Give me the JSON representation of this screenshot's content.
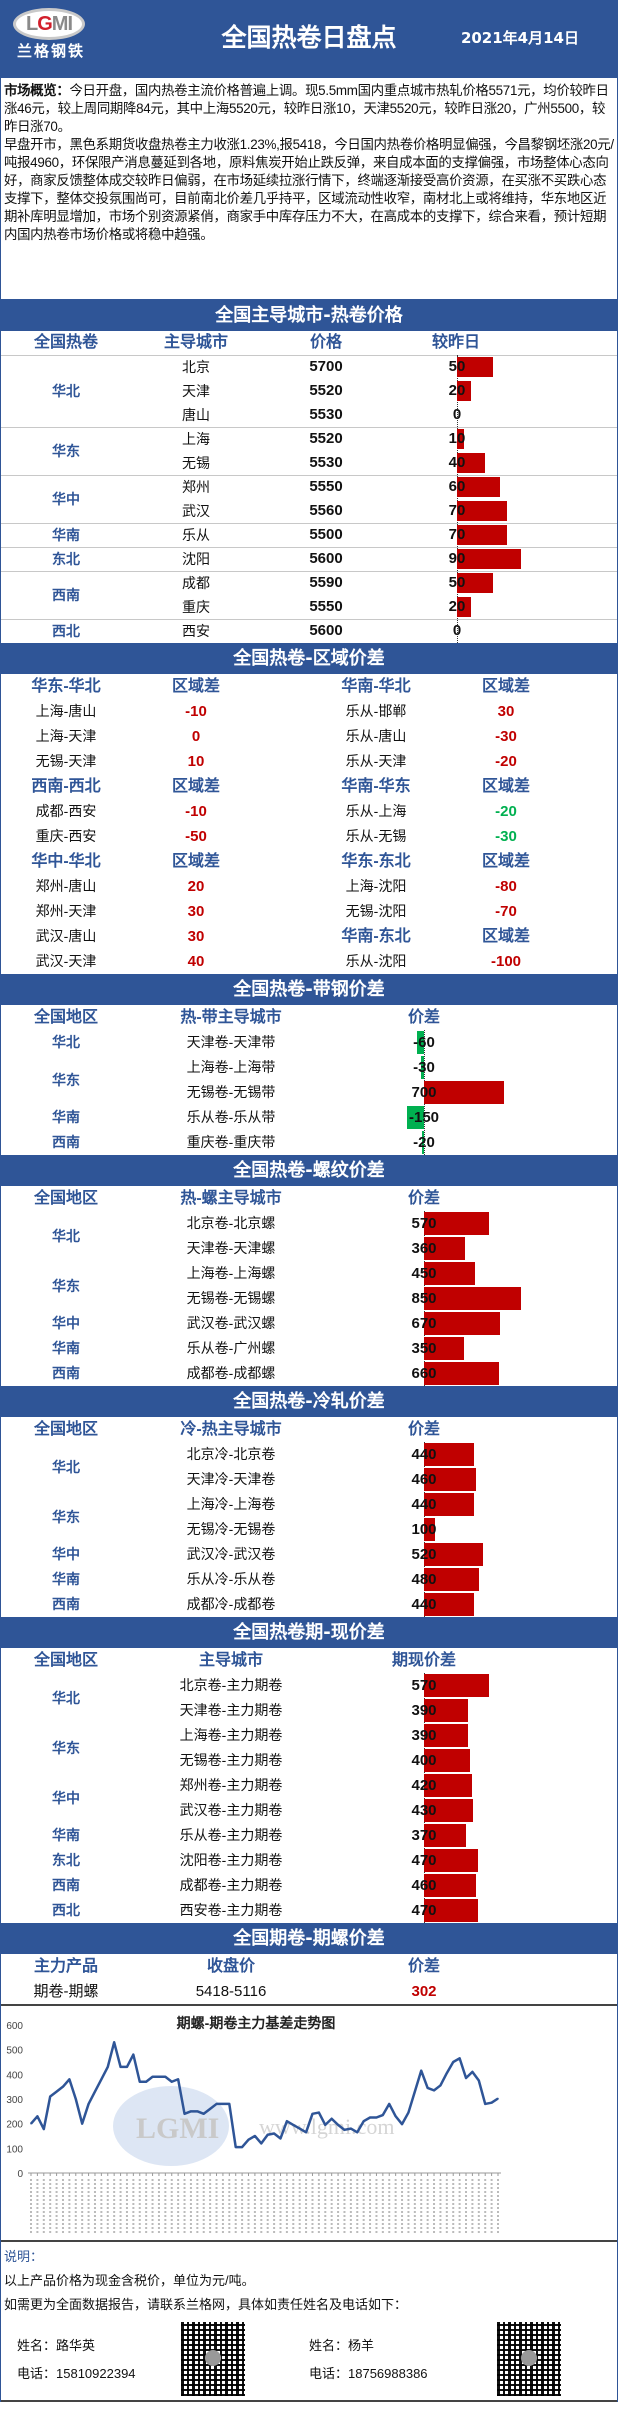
{
  "header": {
    "logo_text": "LGMI",
    "logo_cn": "兰格钢铁",
    "title": "全国热卷日盘点",
    "date": "2021年4月14日"
  },
  "overview": {
    "label": "市场概览：",
    "p1": "今日开盘，国内热卷主流价格普遍上调。现5.5mm国内重点城市热轧价格5571元，均价较昨日涨46元，较上周同期降84元，其中上海5520元，较昨日涨10，天津5520元，较昨日涨20，广州5500，较昨日涨70。",
    "p2": "早盘开市，黑色系期货收盘热卷主力收涨1.23%,报5418，今日国内热卷价格明显偏强，今昌黎钢坯涨20元/吨报4960，环保限产消息蔓延到各地，原料焦炭开始止跌反弹，来自成本面的支撑偏强，市场整体心态向好，商家反馈整体成交较昨日偏弱，在市场延续拉涨行情下，终端逐渐接受高价资源，在买涨不买跌心态支撑下，整体交投氛围尚可，目前南北价差几乎持平，区域流动性收窄，南材北上或将维持，华东地区近期补库明显增加，市场个别资源紧俏，商家手中库存压力不大，在高成本的支撑下，综合来看，预计短期内国内热卷市场价格或将稳中趋强。"
  },
  "colors": {
    "brand": "#2f5597",
    "up": "#c00000",
    "down": "#00b050"
  },
  "hot_price": {
    "title": "全国主导城市-热卷价格",
    "headers": [
      "全国热卷",
      "主导城市",
      "价格",
      "较昨日"
    ],
    "groups": [
      {
        "region": "华北",
        "rows": [
          {
            "city": "北京",
            "price": "5700",
            "change": 50
          },
          {
            "city": "天津",
            "price": "5520",
            "change": 20
          },
          {
            "city": "唐山",
            "price": "5530",
            "change": 0
          }
        ]
      },
      {
        "region": "华东",
        "rows": [
          {
            "city": "上海",
            "price": "5520",
            "change": 10
          },
          {
            "city": "无锡",
            "price": "5530",
            "change": 40
          }
        ]
      },
      {
        "region": "华中",
        "rows": [
          {
            "city": "郑州",
            "price": "5550",
            "change": 60
          },
          {
            "city": "武汉",
            "price": "5560",
            "change": 70
          }
        ]
      },
      {
        "region": "华南",
        "rows": [
          {
            "city": "乐从",
            "price": "5500",
            "change": 70
          }
        ]
      },
      {
        "region": "东北",
        "rows": [
          {
            "city": "沈阳",
            "price": "5600",
            "change": 90
          }
        ]
      },
      {
        "region": "西南",
        "rows": [
          {
            "city": "成都",
            "price": "5590",
            "change": 50
          },
          {
            "city": "重庆",
            "price": "5550",
            "change": 20
          }
        ]
      },
      {
        "region": "西北",
        "rows": [
          {
            "city": "西安",
            "price": "5600",
            "change": 0
          }
        ]
      }
    ]
  },
  "region_spread": {
    "title": "全国热卷-区域价差",
    "col_label": "区域差",
    "left": [
      {
        "name": "华东-华北",
        "color": "#c00000",
        "rows": [
          {
            "pair": "上海-唐山",
            "value": "-10"
          },
          {
            "pair": "上海-天津",
            "value": "0"
          },
          {
            "pair": "无锡-天津",
            "value": "10"
          }
        ]
      },
      {
        "name": "西南-西北",
        "color": "#c00000",
        "rows": [
          {
            "pair": "成都-西安",
            "value": "-10"
          },
          {
            "pair": "重庆-西安",
            "value": "-50"
          }
        ]
      },
      {
        "name": "华中-华北",
        "color": "#c00000",
        "rows": [
          {
            "pair": "郑州-唐山",
            "value": "20"
          },
          {
            "pair": "郑州-天津",
            "value": "30"
          },
          {
            "pair": "武汉-唐山",
            "value": "30"
          },
          {
            "pair": "武汉-天津",
            "value": "40"
          }
        ]
      }
    ],
    "right": [
      {
        "name": "华南-华北",
        "color": "#c00000",
        "rows": [
          {
            "pair": "乐从-邯郸",
            "value": "30"
          },
          {
            "pair": "乐从-唐山",
            "value": "-30"
          },
          {
            "pair": "乐从-天津",
            "value": "-20"
          }
        ]
      },
      {
        "name": "华南-华东",
        "color": "#00b050",
        "rows": [
          {
            "pair": "乐从-上海",
            "value": "-20"
          },
          {
            "pair": "乐从-无锡",
            "value": "-30"
          }
        ]
      },
      {
        "name": "华东-东北",
        "color": "#c00000",
        "rows": [
          {
            "pair": "上海-沈阳",
            "value": "-80"
          },
          {
            "pair": "无锡-沈阳",
            "value": "-70"
          }
        ]
      },
      {
        "name": "华南-东北",
        "color": "#c00000",
        "rows": [
          {
            "pair": "乐从-沈阳",
            "value": "-100"
          }
        ]
      }
    ]
  },
  "spreads": [
    {
      "title": "全国热卷-带钢价差",
      "headers": [
        "全国地区",
        "热-带主导城市",
        "价差"
      ],
      "groups": [
        {
          "region": "华北",
          "rows": [
            {
              "pair": "天津卷-天津带",
              "value": -60
            }
          ]
        },
        {
          "region": "华东",
          "rows": [
            {
              "pair": "上海卷-上海带",
              "value": -30
            },
            {
              "pair": "无锡卷-无锡带",
              "value": 700
            }
          ]
        },
        {
          "region": "华南",
          "rows": [
            {
              "pair": "乐从卷-乐从带",
              "value": -150
            }
          ]
        },
        {
          "region": "西南",
          "rows": [
            {
              "pair": "重庆卷-重庆带",
              "value": -20
            }
          ]
        }
      ]
    },
    {
      "title": "全国热卷-螺纹价差",
      "headers": [
        "全国地区",
        "热-螺主导城市",
        "价差"
      ],
      "groups": [
        {
          "region": "华北",
          "rows": [
            {
              "pair": "北京卷-北京螺",
              "value": 570
            },
            {
              "pair": "天津卷-天津螺",
              "value": 360
            }
          ]
        },
        {
          "region": "华东",
          "rows": [
            {
              "pair": "上海卷-上海螺",
              "value": 450
            },
            {
              "pair": "无锡卷-无锡螺",
              "value": 850
            }
          ]
        },
        {
          "region": "华中",
          "rows": [
            {
              "pair": "武汉卷-武汉螺",
              "value": 670
            }
          ]
        },
        {
          "region": "华南",
          "rows": [
            {
              "pair": "乐从卷-广州螺",
              "value": 350
            }
          ]
        },
        {
          "region": "西南",
          "rows": [
            {
              "pair": "成都卷-成都螺",
              "value": 660
            }
          ]
        }
      ]
    },
    {
      "title": "全国热卷-冷轧价差",
      "headers": [
        "全国地区",
        "冷-热主导城市",
        "价差"
      ],
      "groups": [
        {
          "region": "华北",
          "rows": [
            {
              "pair": "北京冷-北京卷",
              "value": 440
            },
            {
              "pair": "天津冷-天津卷",
              "value": 460
            }
          ]
        },
        {
          "region": "华东",
          "rows": [
            {
              "pair": "上海冷-上海卷",
              "value": 440
            },
            {
              "pair": "无锡冷-无锡卷",
              "value": 100
            }
          ]
        },
        {
          "region": "华中",
          "rows": [
            {
              "pair": "武汉冷-武汉卷",
              "value": 520
            }
          ]
        },
        {
          "region": "华南",
          "rows": [
            {
              "pair": "乐从冷-乐从卷",
              "value": 480
            }
          ]
        },
        {
          "region": "西南",
          "rows": [
            {
              "pair": "成都冷-成都卷",
              "value": 440
            }
          ]
        }
      ]
    },
    {
      "title": "全国热卷期-现价差",
      "headers": [
        "全国地区",
        "主导城市",
        "期现价差"
      ],
      "groups": [
        {
          "region": "华北",
          "rows": [
            {
              "pair": "北京卷-主力期卷",
              "value": 570
            },
            {
              "pair": "天津卷-主力期卷",
              "value": 390
            }
          ]
        },
        {
          "region": "华东",
          "rows": [
            {
              "pair": "上海卷-主力期卷",
              "value": 390
            },
            {
              "pair": "无锡卷-主力期卷",
              "value": 400
            }
          ]
        },
        {
          "region": "华中",
          "rows": [
            {
              "pair": "郑州卷-主力期卷",
              "value": 420
            },
            {
              "pair": "武汉卷-主力期卷",
              "value": 430
            }
          ]
        },
        {
          "region": "华南",
          "rows": [
            {
              "pair": "乐从卷-主力期卷",
              "value": 370
            }
          ]
        },
        {
          "region": "东北",
          "rows": [
            {
              "pair": "沈阳卷-主力期卷",
              "value": 470
            }
          ]
        },
        {
          "region": "西南",
          "rows": [
            {
              "pair": "成都卷-主力期卷",
              "value": 460
            }
          ]
        },
        {
          "region": "西北",
          "rows": [
            {
              "pair": "西安卷-主力期卷",
              "value": 470
            }
          ]
        }
      ]
    }
  ],
  "futures_spread": {
    "title": "全国期卷-期螺价差",
    "headers": [
      "主力产品",
      "收盘价",
      "价差"
    ],
    "row": {
      "product": "期卷-期螺",
      "close": "5418-5116",
      "spread": "302"
    }
  },
  "chart_data": {
    "type": "line",
    "title": "期螺-期卷主力基差走势图",
    "ylim": [
      0,
      600
    ],
    "yticks": [
      0,
      100,
      200,
      300,
      400,
      500,
      600
    ],
    "series_color": "#2f5597",
    "watermark": "www.lgmi.com",
    "values": [
      200,
      230,
      178,
      310,
      330,
      350,
      380,
      300,
      200,
      280,
      330,
      380,
      430,
      530,
      430,
      430,
      480,
      370,
      370,
      390,
      390,
      390,
      370,
      380,
      240,
      250,
      250,
      240,
      260,
      280,
      280,
      280,
      105,
      105,
      135,
      150,
      120,
      155,
      160,
      140,
      210,
      195,
      180,
      165,
      240,
      245,
      195,
      220,
      195,
      175,
      180,
      165,
      210,
      225,
      225,
      235,
      280,
      230,
      198,
      245,
      330,
      415,
      345,
      335,
      355,
      405,
      450,
      465,
      385,
      410,
      375,
      280,
      285,
      302
    ]
  },
  "footer": {
    "note_label": "说明：",
    "line1": "以上产品价格为现金含税价，单位为元/吨。",
    "line2": "如需更为全面数据报告，请联系兰格网，具体如责任姓名及电话如下：",
    "contacts": [
      {
        "name": "姓名：路华英",
        "phone": "电话：15810922394"
      },
      {
        "name": "姓名：杨羊",
        "phone": "电话：18756988386"
      }
    ]
  }
}
